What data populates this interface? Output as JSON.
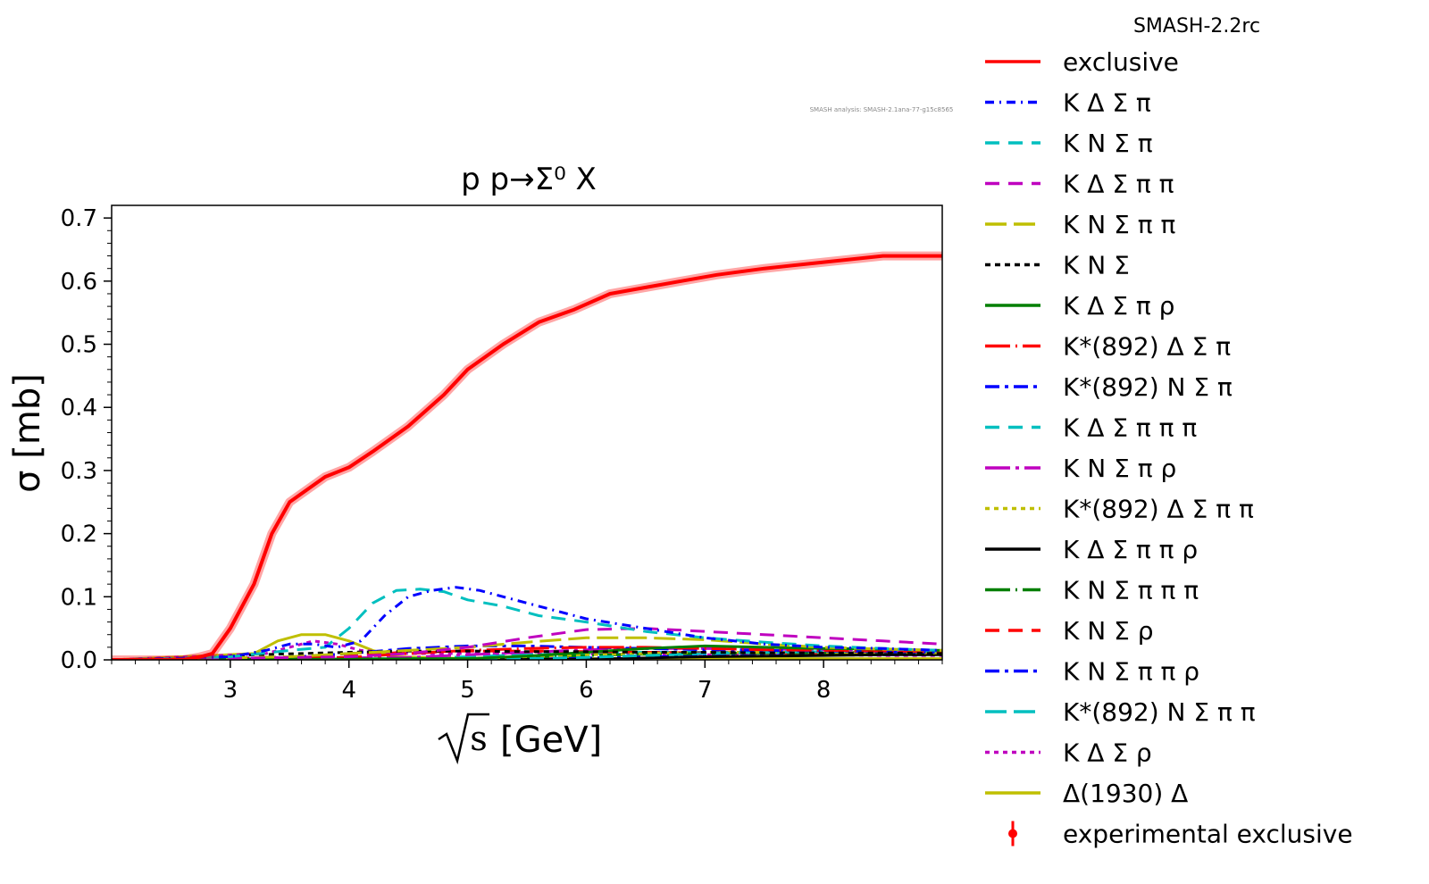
{
  "chart_data": {
    "type": "line",
    "title": "p p→Σ⁰ X",
    "xlabel": "[GeV]",
    "xlabel_radicand": "s",
    "ylabel": "σ [mb]",
    "version_label": "SMASH-2.2rc",
    "analysis_label": "SMASH analysis: SMASH-2.1ana-77-g15c8565",
    "xlim": [
      2.0,
      9.0
    ],
    "ylim": [
      0.0,
      0.72
    ],
    "xticks": [
      3,
      4,
      5,
      6,
      7,
      8
    ],
    "yticks": [
      0.0,
      0.1,
      0.2,
      0.3,
      0.4,
      0.5,
      0.6,
      0.7
    ],
    "ytick_labels": [
      "0.0",
      "0.1",
      "0.2",
      "0.3",
      "0.4",
      "0.5",
      "0.6",
      "0.7"
    ],
    "grid": false,
    "legend_position": "right, outside plot",
    "series": [
      {
        "name": "exclusive",
        "color": "#ff0000",
        "dash": "solid",
        "x": [
          2.0,
          2.6,
          2.75,
          2.85,
          3.0,
          3.2,
          3.35,
          3.5,
          3.8,
          4.0,
          4.2,
          4.5,
          4.8,
          5.0,
          5.3,
          5.6,
          5.9,
          6.2,
          6.5,
          6.8,
          7.1,
          7.5,
          8.0,
          8.5,
          9.0
        ],
        "y": [
          0.0,
          0.0,
          0.005,
          0.01,
          0.05,
          0.12,
          0.2,
          0.25,
          0.29,
          0.305,
          0.33,
          0.37,
          0.42,
          0.46,
          0.5,
          0.535,
          0.555,
          0.58,
          0.59,
          0.6,
          0.61,
          0.62,
          0.63,
          0.64,
          0.64
        ]
      },
      {
        "name": "K Δ Σ π",
        "color": "#0000ff",
        "dash": "10 6 2 6",
        "x": [
          2.0,
          3.0,
          3.3,
          3.5,
          3.7,
          3.9,
          4.1,
          4.3,
          4.5,
          4.7,
          4.9,
          5.1,
          5.3,
          5.6,
          6.0,
          6.5,
          7.0,
          7.5,
          8.0,
          8.5,
          9.0
        ],
        "y": [
          0.0,
          0.005,
          0.015,
          0.025,
          0.025,
          0.02,
          0.03,
          0.07,
          0.1,
          0.11,
          0.115,
          0.11,
          0.1,
          0.085,
          0.065,
          0.05,
          0.035,
          0.025,
          0.02,
          0.018,
          0.015
        ]
      },
      {
        "name": "K N Σ π",
        "color": "#00bfbf",
        "dash": "16 10",
        "x": [
          2.0,
          3.0,
          3.5,
          3.8,
          4.0,
          4.2,
          4.4,
          4.6,
          4.8,
          5.0,
          5.3,
          5.6,
          6.0,
          6.5,
          7.0,
          7.5,
          8.0,
          8.5,
          9.0
        ],
        "y": [
          0.0,
          0.005,
          0.015,
          0.02,
          0.05,
          0.09,
          0.11,
          0.112,
          0.108,
          0.095,
          0.085,
          0.07,
          0.06,
          0.045,
          0.035,
          0.028,
          0.022,
          0.018,
          0.015
        ]
      },
      {
        "name": "K Δ Σ π π",
        "color": "#bf00bf",
        "dash": "16 10",
        "x": [
          2.0,
          4.0,
          4.5,
          5.0,
          5.5,
          6.0,
          6.5,
          7.0,
          7.5,
          8.0,
          8.5,
          9.0
        ],
        "y": [
          0.0,
          0.005,
          0.01,
          0.02,
          0.035,
          0.048,
          0.05,
          0.045,
          0.04,
          0.035,
          0.03,
          0.025
        ]
      },
      {
        "name": "K N Σ π π",
        "color": "#bfbf00",
        "dash": "24 8",
        "x": [
          2.0,
          3.5,
          4.0,
          4.5,
          5.0,
          5.5,
          6.0,
          6.5,
          7.0,
          7.5,
          8.0,
          8.5,
          9.0
        ],
        "y": [
          0.0,
          0.005,
          0.01,
          0.015,
          0.02,
          0.028,
          0.035,
          0.035,
          0.032,
          0.025,
          0.02,
          0.017,
          0.015
        ]
      },
      {
        "name": "K N Σ",
        "color": "#000000",
        "dash": "6 5",
        "x": [
          2.0,
          2.8,
          3.2,
          3.6,
          4.0,
          4.5,
          5.0,
          5.5,
          6.0,
          6.5,
          7.0,
          7.5,
          8.0,
          8.5,
          9.0
        ],
        "y": [
          0.0,
          0.003,
          0.008,
          0.01,
          0.012,
          0.014,
          0.014,
          0.013,
          0.013,
          0.012,
          0.012,
          0.011,
          0.011,
          0.011,
          0.01
        ]
      },
      {
        "name": "K Δ Σ π ρ",
        "color": "#007f00",
        "dash": "solid",
        "x": [
          2.0,
          5.0,
          5.5,
          6.0,
          6.5,
          7.0,
          7.5,
          8.0,
          8.5,
          9.0
        ],
        "y": [
          0.0,
          0.002,
          0.006,
          0.012,
          0.018,
          0.022,
          0.02,
          0.018,
          0.017,
          0.015
        ]
      },
      {
        "name": "K*(892) Δ Σ π",
        "color": "#ff0000",
        "dash": "28 6 2 6",
        "x": [
          2.0,
          4.0,
          4.5,
          5.0,
          5.5,
          6.0,
          6.5,
          7.0,
          7.5,
          8.0,
          8.5,
          9.0
        ],
        "y": [
          0.0,
          0.004,
          0.01,
          0.015,
          0.018,
          0.02,
          0.02,
          0.018,
          0.016,
          0.015,
          0.014,
          0.013
        ]
      },
      {
        "name": "K*(892) N Σ π",
        "color": "#0000ff",
        "dash": "16 6 4 6",
        "x": [
          2.0,
          3.5,
          4.0,
          4.5,
          5.0,
          5.5,
          6.0,
          6.5,
          7.0,
          7.5,
          8.0,
          8.5,
          9.0
        ],
        "y": [
          0.0,
          0.004,
          0.01,
          0.018,
          0.022,
          0.022,
          0.02,
          0.018,
          0.016,
          0.015,
          0.014,
          0.013,
          0.012
        ]
      },
      {
        "name": "K Δ Σ π π π",
        "color": "#00bfbf",
        "dash": "16 10",
        "x": [
          2.0,
          5.5,
          6.0,
          6.5,
          7.0,
          7.5,
          8.0,
          8.5,
          9.0
        ],
        "y": [
          0.0,
          0.002,
          0.004,
          0.007,
          0.01,
          0.012,
          0.013,
          0.014,
          0.014
        ]
      },
      {
        "name": "K N Σ π ρ",
        "color": "#bf00bf",
        "dash": "28 6 4 6",
        "x": [
          2.0,
          4.5,
          5.0,
          5.5,
          6.0,
          6.5,
          7.0,
          7.5,
          8.0,
          8.5,
          9.0
        ],
        "y": [
          0.0,
          0.004,
          0.008,
          0.012,
          0.016,
          0.018,
          0.018,
          0.017,
          0.016,
          0.015,
          0.014
        ]
      },
      {
        "name": "K*(892) Δ Σ π π",
        "color": "#bfbf00",
        "dash": "5 5",
        "x": [
          2.0,
          5.0,
          5.5,
          6.0,
          6.5,
          7.0,
          7.5,
          8.0,
          8.5,
          9.0
        ],
        "y": [
          0.0,
          0.002,
          0.005,
          0.008,
          0.01,
          0.012,
          0.012,
          0.012,
          0.012,
          0.011
        ]
      },
      {
        "name": "K Δ Σ π π ρ",
        "color": "#000000",
        "dash": "solid",
        "x": [
          2.0,
          6.0,
          6.5,
          7.0,
          7.5,
          8.0,
          8.5,
          9.0
        ],
        "y": [
          0.0,
          0.001,
          0.003,
          0.005,
          0.006,
          0.007,
          0.008,
          0.008
        ]
      },
      {
        "name": "K N Σ π π π",
        "color": "#007f00",
        "dash": "28 6 2 6",
        "x": [
          2.0,
          5.0,
          5.5,
          6.0,
          6.5,
          7.0,
          7.5,
          8.0,
          8.5,
          9.0
        ],
        "y": [
          0.0,
          0.002,
          0.004,
          0.007,
          0.009,
          0.01,
          0.011,
          0.011,
          0.011,
          0.011
        ]
      },
      {
        "name": "K N Σ ρ",
        "color": "#ff0000",
        "dash": "16 10",
        "x": [
          2.0,
          3.5,
          4.0,
          4.5,
          5.0,
          5.5,
          6.0,
          6.5,
          7.0,
          7.5,
          8.0,
          8.5,
          9.0
        ],
        "y": [
          0.0,
          0.003,
          0.008,
          0.012,
          0.014,
          0.014,
          0.013,
          0.012,
          0.011,
          0.011,
          0.01,
          0.01,
          0.01
        ]
      },
      {
        "name": "K N Σ π π ρ",
        "color": "#0000ff",
        "dash": "16 6 4 6",
        "x": [
          2.0,
          5.5,
          6.0,
          6.5,
          7.0,
          7.5,
          8.0,
          8.5,
          9.0
        ],
        "y": [
          0.0,
          0.001,
          0.003,
          0.005,
          0.006,
          0.007,
          0.008,
          0.008,
          0.008
        ]
      },
      {
        "name": "K*(892) N Σ π π",
        "color": "#00bfbf",
        "dash": "24 8",
        "x": [
          2.0,
          4.5,
          5.0,
          5.5,
          6.0,
          6.5,
          7.0,
          7.5,
          8.0,
          8.5,
          9.0
        ],
        "y": [
          0.0,
          0.002,
          0.005,
          0.008,
          0.01,
          0.012,
          0.012,
          0.012,
          0.011,
          0.011,
          0.011
        ]
      },
      {
        "name": "K Δ Σ ρ",
        "color": "#bf00bf",
        "dash": "5 5",
        "x": [
          2.0,
          3.3,
          3.5,
          3.7,
          3.9,
          4.1,
          4.5,
          5.0,
          5.5,
          6.0,
          6.5,
          7.0,
          7.5,
          8.0,
          8.5,
          9.0
        ],
        "y": [
          0.0,
          0.01,
          0.02,
          0.03,
          0.025,
          0.015,
          0.01,
          0.01,
          0.01,
          0.009,
          0.009,
          0.008,
          0.008,
          0.008,
          0.007,
          0.007
        ]
      },
      {
        "name": "Δ(1930) Δ",
        "color": "#bfbf00",
        "dash": "solid",
        "x": [
          2.0,
          3.2,
          3.4,
          3.6,
          3.8,
          4.0,
          4.2,
          4.4,
          5.0,
          6.0,
          7.0,
          8.0,
          9.0
        ],
        "y": [
          0.0,
          0.01,
          0.03,
          0.04,
          0.04,
          0.03,
          0.015,
          0.005,
          0.002,
          0.002,
          0.002,
          0.002,
          0.002
        ]
      }
    ],
    "experimental_label": "experimental exclusive",
    "experimental_color": "#ff0000"
  }
}
